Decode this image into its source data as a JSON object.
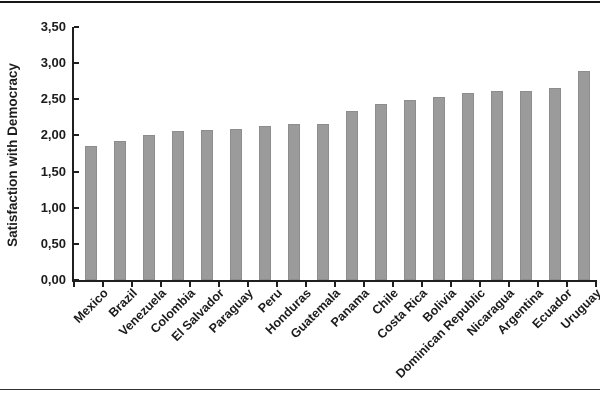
{
  "figure": {
    "background": "#ffffff",
    "top_rule_color": "#161616",
    "bottom_rule_color": "#333333"
  },
  "chart_data": {
    "type": "bar",
    "title": "",
    "ylabel": "Satisfaction with Democracy",
    "xlabel": "",
    "categories": [
      "Mexico",
      "Brazil",
      "Venezuela",
      "Colombia",
      "El Salvador",
      "Paraguay",
      "Peru",
      "Honduras",
      "Guatemala",
      "Panama",
      "Chile",
      "Costa Rica",
      "Bolivia",
      "Dominican Republic",
      "Nicaragua",
      "Argentina",
      "Ecuador",
      "Uruguay"
    ],
    "values": [
      1.85,
      1.93,
      2.0,
      2.06,
      2.08,
      2.09,
      2.13,
      2.16,
      2.16,
      2.34,
      2.43,
      2.49,
      2.53,
      2.59,
      2.61,
      2.62,
      2.65,
      2.89
    ],
    "ylim": [
      0,
      3.5
    ],
    "ytick_step": 0.5,
    "ytick_labels": [
      "0,00",
      "0,50",
      "1,00",
      "1,50",
      "2,00",
      "2,50",
      "3,00",
      "3,50"
    ],
    "decimal_separator": ",",
    "grid": false,
    "legend": "none",
    "x_label_rotation_deg": 45,
    "bar_color": "#9b9b9b",
    "bar_edge_color": "#8d8d8d",
    "axis_color": "#1f1f1f",
    "text_color": "#1c1c1c"
  }
}
